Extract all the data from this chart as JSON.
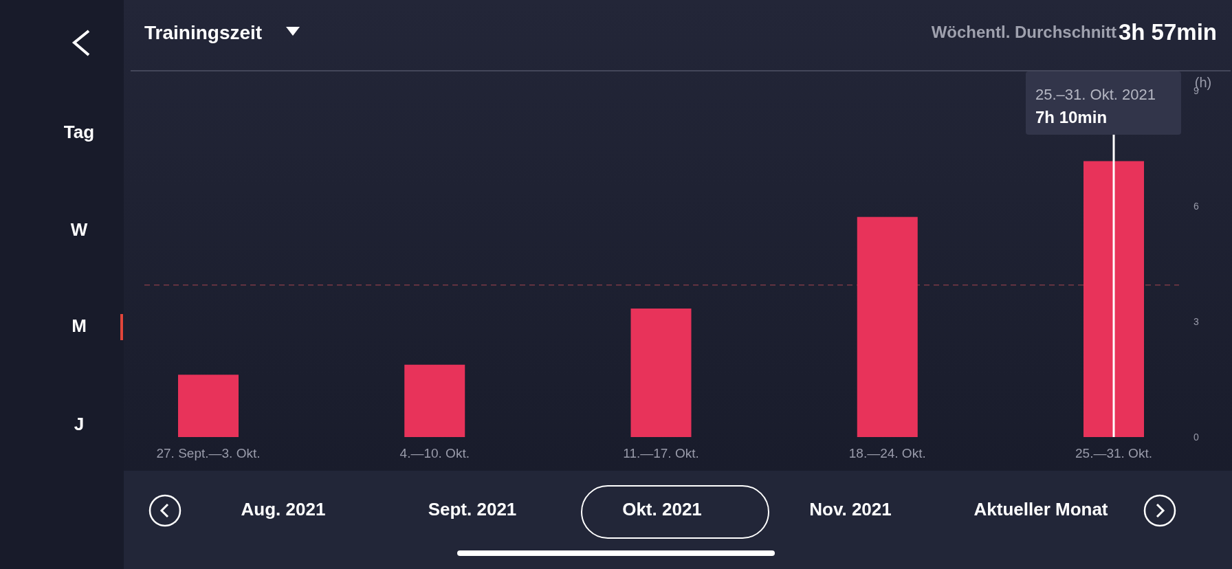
{
  "chart_data": {
    "type": "bar",
    "title": "Trainingszeit",
    "ylabel": "(h)",
    "categories": [
      "27. Sept.—3. Okt.",
      "4.—10. Okt.",
      "11.—17. Okt.",
      "18.—24. Okt.",
      "25.—31. Okt."
    ],
    "values": [
      1.62,
      1.88,
      3.34,
      5.72,
      7.17
    ],
    "color": "#e8335a",
    "ylim": [
      0,
      9
    ],
    "yticks": [
      0,
      3,
      6,
      9
    ],
    "ref_lines": [
      {
        "axis": "y",
        "value": 3.95,
        "color": "#7a3845",
        "line_style": "dashed"
      }
    ],
    "annotations": [
      "Wöchentl. Durchschnitt",
      "3h 57min",
      "Tag",
      "W",
      "M",
      "J",
      "Aug. 2021",
      "Sept. 2021",
      "Okt. 2021",
      "Nov. 2021",
      "Aktueller Monat",
      "25.–31. Okt. 2021",
      "7h 10min"
    ]
  }
}
